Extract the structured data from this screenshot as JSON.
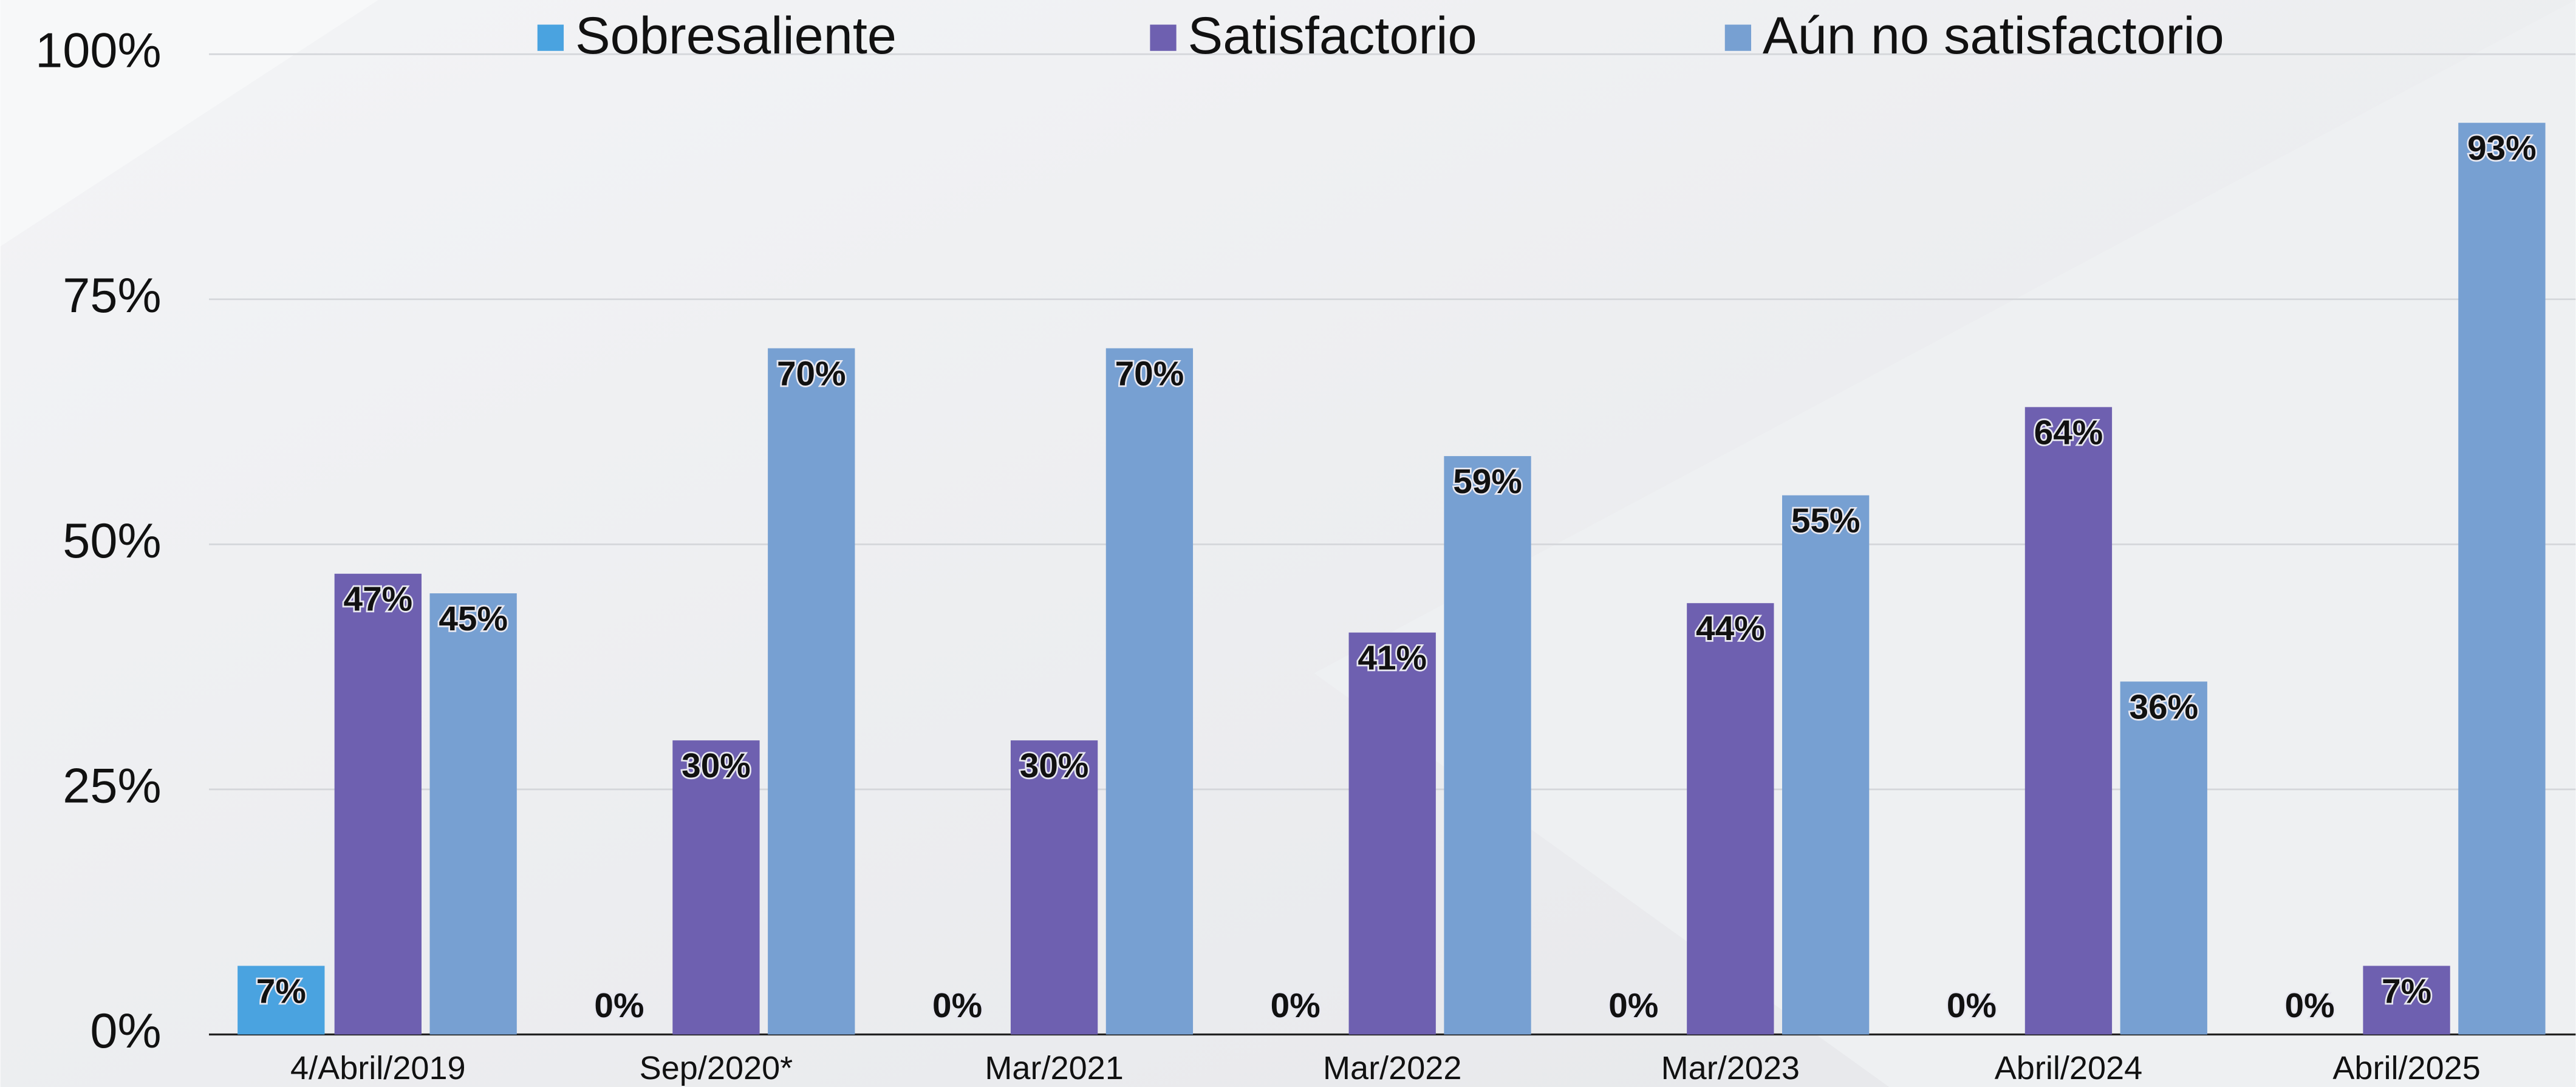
{
  "chart_data": {
    "type": "bar",
    "categories": [
      "4/Abril/2019",
      "Sep/2020*",
      "Mar/2021",
      "Mar/2022",
      "Mar/2023",
      "Abril/2024",
      "Abril/2025"
    ],
    "series": [
      {
        "name": "Sobresaliente",
        "color": "#4aa3e0",
        "values": [
          7,
          0,
          0,
          0,
          0,
          0,
          0
        ],
        "value_labels": [
          "7%",
          "0%",
          "0%",
          "0%",
          "0%",
          "0%",
          "0%"
        ]
      },
      {
        "name": "Satisfactorio",
        "color": "#6e60b0",
        "values": [
          47,
          30,
          30,
          41,
          44,
          64,
          7
        ],
        "value_labels": [
          "47%",
          "30%",
          "30%",
          "41%",
          "44%",
          "64%",
          "7%"
        ]
      },
      {
        "name": "Aún no satisfactorio",
        "color": "#77a0d2",
        "values": [
          45,
          70,
          70,
          59,
          55,
          36,
          93
        ],
        "value_labels": [
          "45%",
          "70%",
          "70%",
          "59%",
          "55%",
          "36%",
          "93%"
        ]
      }
    ],
    "ylim": [
      0,
      100
    ],
    "yticks": [
      {
        "value": 0,
        "label": "0%"
      },
      {
        "value": 25,
        "label": "25%"
      },
      {
        "value": 50,
        "label": "50%"
      },
      {
        "value": 75,
        "label": "75%"
      },
      {
        "value": 100,
        "label": "100%"
      }
    ],
    "grid": true,
    "legend": "top"
  }
}
